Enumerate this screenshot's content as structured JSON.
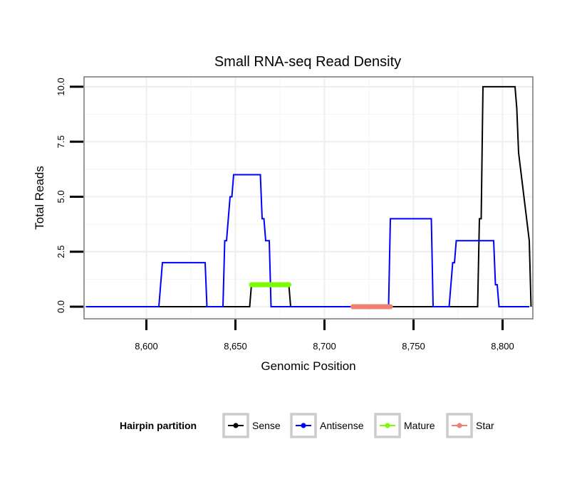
{
  "chart_data": {
    "type": "line",
    "title": "Small RNA-seq Read Density",
    "xlabel": "Genomic Position",
    "ylabel": "Total Reads",
    "xlim": [
      8565,
      8817
    ],
    "ylim": [
      -0.55,
      10.45
    ],
    "x_ticks": [
      8600,
      8650,
      8700,
      8750,
      8800
    ],
    "x_tick_labels": [
      "8,600",
      "8,650",
      "8,700",
      "8,750",
      "8,800"
    ],
    "y_ticks": [
      0,
      2.5,
      5,
      7.5,
      10
    ],
    "y_tick_labels": [
      "0.0",
      "2.5",
      "5.0",
      "7.5",
      "10.0"
    ],
    "grid": true,
    "legend": {
      "title": "Hairpin partition",
      "position": "bottom",
      "entries": [
        "Sense",
        "Antisense",
        "Mature",
        "Star"
      ]
    },
    "series": [
      {
        "name": "Sense",
        "color": "#000000",
        "x": [
          8566,
          8658,
          8659,
          8680,
          8681,
          8786,
          8787,
          8788,
          8789,
          8807,
          8808,
          8809,
          8815,
          8816
        ],
        "y": [
          0,
          0,
          1,
          1,
          0,
          0,
          4,
          4,
          10,
          10,
          9,
          7,
          3,
          0
        ]
      },
      {
        "name": "Antisense",
        "color": "#0000ff",
        "x": [
          8566,
          8607,
          8608,
          8609,
          8633,
          8634,
          8643,
          8644,
          8645,
          8646,
          8647,
          8648,
          8649,
          8663,
          8664,
          8665,
          8666,
          8667,
          8668,
          8669,
          8670,
          8680,
          8736,
          8737,
          8760,
          8761,
          8770,
          8771,
          8772,
          8773,
          8774,
          8775,
          8795,
          8796,
          8797,
          8798,
          8799,
          8815
        ],
        "y": [
          0,
          0,
          1,
          2,
          2,
          0,
          0,
          3,
          3,
          4,
          5,
          5,
          6,
          6,
          6,
          4,
          4,
          3,
          3,
          3,
          0,
          0,
          0,
          4,
          4,
          0,
          0,
          1,
          2,
          2,
          3,
          3,
          3,
          1,
          1,
          0,
          0,
          0
        ]
      },
      {
        "name": "Mature",
        "color": "#7cfc00",
        "x": [
          8659,
          8680
        ],
        "y": [
          1,
          1
        ]
      },
      {
        "name": "Star",
        "color": "#f08070",
        "x": [
          8716,
          8737
        ],
        "y": [
          0,
          0
        ]
      }
    ]
  }
}
